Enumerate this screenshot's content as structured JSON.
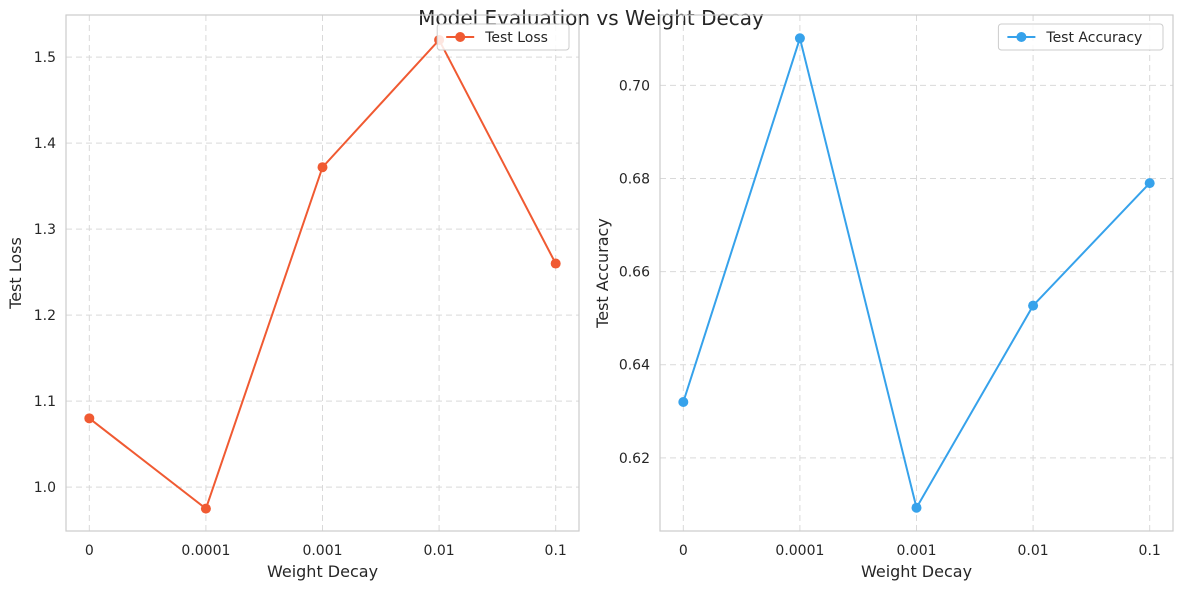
{
  "figure": {
    "suptitle": "Model Evaluation vs Weight Decay"
  },
  "chart_data": [
    {
      "type": "line",
      "title": "",
      "xlabel": "Weight Decay",
      "ylabel": "Test Loss",
      "categories": [
        "0",
        "0.0001",
        "0.001",
        "0.01",
        "0.1"
      ],
      "series": [
        {
          "name": "Test Loss",
          "color": "#f05a32",
          "marker": "circle",
          "values": [
            1.08,
            0.975,
            1.372,
            1.52,
            1.26
          ]
        }
      ],
      "ylim": [
        0.949,
        1.549
      ],
      "yticks": [
        1.0,
        1.1,
        1.2,
        1.3,
        1.4,
        1.5
      ],
      "ytick_labels": [
        "1.0",
        "1.1",
        "1.2",
        "1.3",
        "1.4",
        "1.5"
      ],
      "grid": true,
      "grid_style": "dashed",
      "legend": "upper right"
    },
    {
      "type": "line",
      "title": "",
      "xlabel": "Weight Decay",
      "ylabel": "Test Accuracy",
      "categories": [
        "0",
        "0.0001",
        "0.001",
        "0.01",
        "0.1"
      ],
      "series": [
        {
          "name": "Test Accuracy",
          "color": "#36a2eb",
          "marker": "circle",
          "values": [
            0.632,
            0.7101,
            0.6093,
            0.6527,
            0.679
          ]
        }
      ],
      "ylim": [
        0.6043,
        0.7151
      ],
      "yticks": [
        0.62,
        0.64,
        0.66,
        0.68,
        0.7
      ],
      "ytick_labels": [
        "0.62",
        "0.64",
        "0.66",
        "0.68",
        "0.70"
      ],
      "grid": true,
      "grid_style": "dashed",
      "legend": "upper right"
    }
  ]
}
